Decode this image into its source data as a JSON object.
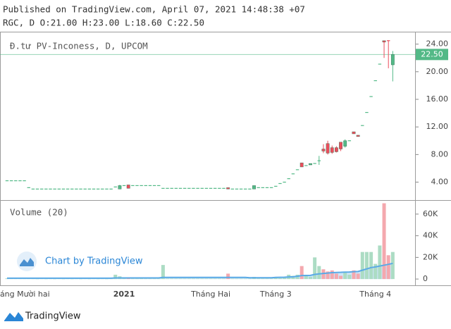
{
  "header": {
    "published": "Published on TradingView.com, April 07, 2021 14:48:38 +07",
    "ohlc": "RGC, D O:21.00 H:23.00 L:18.60 C:22.50"
  },
  "footer": {
    "brand": "TradingView"
  },
  "chart_data": {
    "type": "candlestick",
    "legend": "Đ.tư PV-Inconess, D, UPCOM",
    "volume_label": "Volume (20)",
    "watermark": "Chart by TradingView",
    "categories": [
      null,
      null,
      null,
      "Tháng Mười hai",
      null,
      null,
      null,
      null,
      null,
      null,
      null,
      null,
      null,
      null,
      null,
      null,
      null,
      null,
      null,
      null,
      null,
      null,
      null,
      null,
      null,
      null,
      null,
      "2021",
      null,
      null,
      null,
      null,
      null,
      null,
      null,
      null,
      null,
      null,
      null,
      null,
      null,
      null,
      null,
      null,
      null,
      null,
      null,
      "Tháng Hai",
      null,
      null,
      null,
      null,
      null,
      null,
      null,
      null,
      null,
      null,
      null,
      null,
      null,
      null,
      "Tháng 3",
      null,
      null,
      null,
      null,
      null,
      null,
      null,
      null,
      null,
      null,
      null,
      null,
      null,
      null,
      null,
      null,
      null,
      null,
      null,
      null,
      null,
      null,
      "Tháng 4",
      null,
      null,
      null,
      null
    ],
    "open": [
      4.2,
      4.2,
      4.2,
      4.2,
      4.2,
      3.2,
      3,
      3,
      3,
      3,
      3,
      3,
      3,
      3,
      3,
      3,
      3,
      3,
      3,
      3,
      3,
      3,
      3,
      3,
      3,
      3.3,
      3,
      3.5,
      3.6,
      3.5,
      3.5,
      3.5,
      3.5,
      3.5,
      3.5,
      3.5,
      3.1,
      3.1,
      3.1,
      3.1,
      3.1,
      3.1,
      3.1,
      3.1,
      3.1,
      3.1,
      3.1,
      3.1,
      3.1,
      3.1,
      3.1,
      3.2,
      3,
      3,
      3,
      3,
      3,
      3,
      3.2,
      3.2,
      3.2,
      3.2,
      3.4,
      3.8,
      4.0,
      4.5,
      5.2,
      5.8,
      6.8,
      6.4,
      6.5,
      6.7,
      7.0,
      8.8,
      9.6,
      9.0,
      9.0,
      9.8,
      9.2,
      10.0,
      11.3,
      10.8,
      12.2,
      14.1,
      16.4,
      18.7,
      21.1,
      24.5,
      24.5,
      21
    ],
    "high": [
      4.2,
      4.2,
      4.2,
      4.2,
      4.2,
      3.2,
      3,
      3,
      3,
      3,
      3,
      3,
      3,
      3,
      3,
      3,
      3,
      3,
      3,
      3,
      3,
      3,
      3,
      3,
      3,
      3.3,
      3.6,
      3.5,
      3.6,
      3.5,
      3.5,
      3.5,
      3.5,
      3.5,
      3.5,
      3.5,
      3.1,
      3.1,
      3.1,
      3.1,
      3.1,
      3.1,
      3.1,
      3.1,
      3.1,
      3.1,
      3.1,
      3.1,
      3.1,
      3.1,
      3.1,
      3.2,
      3,
      3,
      3,
      3,
      3,
      3.5,
      3.2,
      3.2,
      3.2,
      3.2,
      3.4,
      3.8,
      4.0,
      4.5,
      5.2,
      5.8,
      6.8,
      6.4,
      6.7,
      6.7,
      7.8,
      9.5,
      10.0,
      9.3,
      9.2,
      9.8,
      10.2,
      10.0,
      11.3,
      10.8,
      12.2,
      14.1,
      16.4,
      18.7,
      21.1,
      24.5,
      24.5,
      23
    ],
    "low": [
      4.2,
      4.2,
      4.2,
      4.2,
      4.2,
      3.2,
      3,
      3,
      3,
      3,
      3,
      3,
      3,
      3,
      3,
      3,
      3,
      3,
      3,
      3,
      3,
      3,
      3,
      3,
      3,
      3.3,
      3,
      3.5,
      3.1,
      3.5,
      3.5,
      3.5,
      3.5,
      3.5,
      3.5,
      3.5,
      3.1,
      3.1,
      3.1,
      3.1,
      3.1,
      3.1,
      3.1,
      3.1,
      3.1,
      3.1,
      3.1,
      3.1,
      3.1,
      3.1,
      3.1,
      3,
      3,
      3,
      3,
      3,
      3,
      3,
      3.2,
      3.2,
      3.2,
      3.2,
      3.4,
      3.8,
      4.0,
      4.5,
      5.2,
      5.8,
      6.2,
      6.4,
      6.5,
      6.7,
      6.5,
      8.2,
      8.0,
      8.1,
      8.3,
      8.5,
      9.0,
      10.0,
      11.0,
      10.6,
      12.2,
      14.1,
      16.4,
      18.7,
      21.1,
      22.0,
      20.5,
      18.6
    ],
    "close": [
      4.2,
      4.2,
      4.2,
      4.2,
      4.2,
      3.2,
      3,
      3,
      3,
      3,
      3,
      3,
      3,
      3,
      3,
      3,
      3,
      3,
      3,
      3,
      3,
      3,
      3,
      3,
      3,
      3.3,
      3.5,
      3.5,
      3.1,
      3.5,
      3.5,
      3.5,
      3.5,
      3.5,
      3.5,
      3.5,
      3.1,
      3.1,
      3.1,
      3.1,
      3.1,
      3.1,
      3.1,
      3.1,
      3.1,
      3.1,
      3.1,
      3.1,
      3.1,
      3.1,
      3.1,
      3,
      3,
      3,
      3,
      3,
      3,
      3.5,
      3.2,
      3.2,
      3.2,
      3.2,
      3.4,
      3.8,
      4.0,
      4.5,
      5.2,
      5.8,
      6.2,
      6.4,
      6.7,
      6.7,
      7.1,
      8.5,
      8.2,
      8.3,
      8.4,
      8.8,
      10.0,
      10.0,
      11.0,
      10.6,
      12.2,
      14.1,
      16.4,
      18.7,
      21.1,
      24.3,
      24.4,
      22.5
    ],
    "volume": [
      600,
      500,
      500,
      700,
      400,
      800,
      300,
      200,
      300,
      200,
      300,
      200,
      300,
      200,
      300,
      200,
      300,
      200,
      300,
      200,
      300,
      200,
      300,
      200,
      300,
      4000,
      2500,
      500,
      1200,
      300,
      300,
      500,
      300,
      300,
      300,
      300,
      13000,
      400,
      400,
      400,
      400,
      400,
      400,
      400,
      400,
      400,
      400,
      400,
      400,
      400,
      400,
      5000,
      300,
      300,
      300,
      300,
      300,
      2000,
      400,
      400,
      400,
      400,
      1000,
      800,
      1500,
      4000,
      3000,
      4000,
      12000,
      3000,
      2000,
      20000,
      12000,
      9000,
      7000,
      8000,
      5000,
      3000,
      6000,
      4000,
      8000,
      5000,
      25000,
      25000,
      25000,
      14000,
      31000,
      70000,
      22000,
      25000
    ],
    "volume_ma": [
      800,
      800,
      800,
      800,
      800,
      800,
      800,
      800,
      800,
      800,
      800,
      800,
      800,
      800,
      800,
      800,
      800,
      800,
      800,
      800,
      800,
      800,
      800,
      800,
      800,
      1000,
      1000,
      1000,
      1000,
      1000,
      1000,
      1000,
      1000,
      1000,
      1000,
      1000,
      1500,
      1500,
      1500,
      1500,
      1500,
      1500,
      1500,
      1500,
      1500,
      1500,
      1500,
      1500,
      1500,
      1500,
      1500,
      1500,
      1500,
      1500,
      1500,
      1500,
      1200,
      1200,
      1200,
      1200,
      1200,
      1200,
      1500,
      1600,
      1700,
      1900,
      2100,
      2600,
      3200,
      3300,
      3400,
      4300,
      4800,
      5200,
      5500,
      5900,
      6100,
      6200,
      6400,
      6500,
      6800,
      7000,
      8200,
      9400,
      10600,
      11200,
      12000,
      12800,
      13600,
      14500
    ],
    "up_color": "#53b987",
    "down_color": "#eb4d5c",
    "volume_up_color": "#acdcc4",
    "volume_down_color": "#f4a8ae",
    "ma_color": "#5aaae6",
    "last_price": {
      "value": 22.5,
      "label": "22.50"
    },
    "ylim": [
      1.4,
      25.8
    ],
    "yticks": [
      {
        "value": 4,
        "label": "4.00"
      },
      {
        "value": 8,
        "label": "8.00"
      },
      {
        "value": 12,
        "label": "12.00"
      },
      {
        "value": 16,
        "label": "16.00"
      },
      {
        "value": 20,
        "label": "20.00"
      },
      {
        "value": 24,
        "label": "24.00"
      }
    ],
    "y2lim": [
      -5800,
      71000
    ],
    "y2ticks": [
      0,
      {
        "value": 20000,
        "label": "20K"
      },
      {
        "value": 40000,
        "label": "40K"
      },
      {
        "value": 60000,
        "label": "60K"
      }
    ],
    "grid": false
  }
}
